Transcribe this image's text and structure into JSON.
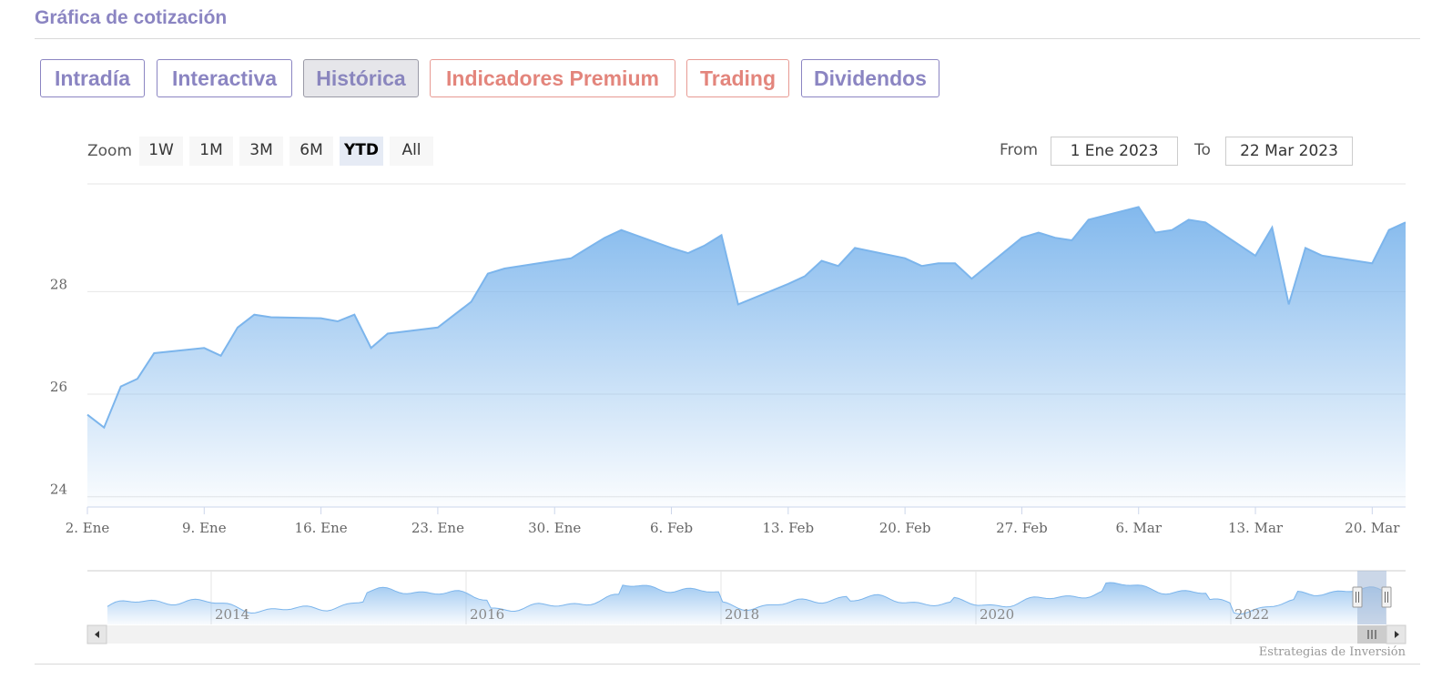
{
  "section_title": "Gráfica de cotización",
  "tabs": [
    {
      "label": "Intradía"
    },
    {
      "label": "Interactiva"
    },
    {
      "label": "Histórica"
    },
    {
      "label": "Indicadores Premium"
    },
    {
      "label": "Trading"
    },
    {
      "label": "Dividendos"
    }
  ],
  "zoom": {
    "label": "Zoom",
    "buttons": [
      "1W",
      "1M",
      "3M",
      "6M",
      "YTD",
      "All"
    ],
    "active": "YTD"
  },
  "range": {
    "from_label": "From",
    "from_value": "1 Ene 2023",
    "to_label": "To",
    "to_value": "22 Mar 2023"
  },
  "chart_data": {
    "type": "area",
    "title": "",
    "xlabel": "",
    "ylabel": "",
    "ylim": [
      23.8,
      30.1
    ],
    "y_ticks": [
      24,
      26,
      28
    ],
    "x_tick_labels": [
      "2. Ene",
      "9. Ene",
      "16. Ene",
      "23. Ene",
      "30. Ene",
      "6. Feb",
      "13. Feb",
      "20. Feb",
      "27. Feb",
      "6. Mar",
      "13. Mar",
      "20. Mar"
    ],
    "colors": {
      "line": "#7cb5ec",
      "fill_top": "#7cb5ec"
    },
    "grid": true,
    "series": [
      {
        "x": [
          "2023-01-02",
          "2023-01-03",
          "2023-01-04",
          "2023-01-05",
          "2023-01-06",
          "2023-01-09",
          "2023-01-10",
          "2023-01-11",
          "2023-01-12",
          "2023-01-13",
          "2023-01-16",
          "2023-01-17",
          "2023-01-18",
          "2023-01-19",
          "2023-01-20",
          "2023-01-23",
          "2023-01-24",
          "2023-01-25",
          "2023-01-26",
          "2023-01-27",
          "2023-01-30",
          "2023-01-31",
          "2023-02-01",
          "2023-02-02",
          "2023-02-03",
          "2023-02-06",
          "2023-02-07",
          "2023-02-08",
          "2023-02-09",
          "2023-02-10",
          "2023-02-13",
          "2023-02-14",
          "2023-02-15",
          "2023-02-16",
          "2023-02-17",
          "2023-02-20",
          "2023-02-21",
          "2023-02-22",
          "2023-02-23",
          "2023-02-24",
          "2023-02-27",
          "2023-02-28",
          "2023-03-01",
          "2023-03-02",
          "2023-03-03",
          "2023-03-06",
          "2023-03-07",
          "2023-03-08",
          "2023-03-09",
          "2023-03-10",
          "2023-03-13",
          "2023-03-14",
          "2023-03-15",
          "2023-03-16",
          "2023-03-17",
          "2023-03-20",
          "2023-03-21",
          "2023-03-22"
        ],
        "values": [
          25.6,
          25.35,
          26.15,
          26.3,
          26.8,
          26.9,
          26.75,
          27.3,
          27.55,
          27.5,
          27.48,
          27.42,
          27.55,
          26.9,
          27.18,
          27.3,
          27.55,
          27.8,
          28.35,
          28.45,
          28.6,
          28.65,
          28.85,
          29.05,
          29.2,
          28.85,
          28.75,
          28.9,
          29.1,
          27.75,
          28.15,
          28.3,
          28.6,
          28.5,
          28.85,
          28.65,
          28.5,
          28.55,
          28.55,
          28.25,
          29.05,
          29.15,
          29.05,
          29.0,
          29.4,
          29.65,
          29.15,
          29.2,
          29.4,
          29.35,
          28.7,
          29.25,
          27.75,
          28.85,
          28.7,
          28.55,
          29.2,
          29.35
        ]
      }
    ],
    "navigator": {
      "x_tick_labels": [
        "2014",
        "2016",
        "2018",
        "2020",
        "2022"
      ]
    }
  },
  "credits": "Estrategias de Inversión"
}
